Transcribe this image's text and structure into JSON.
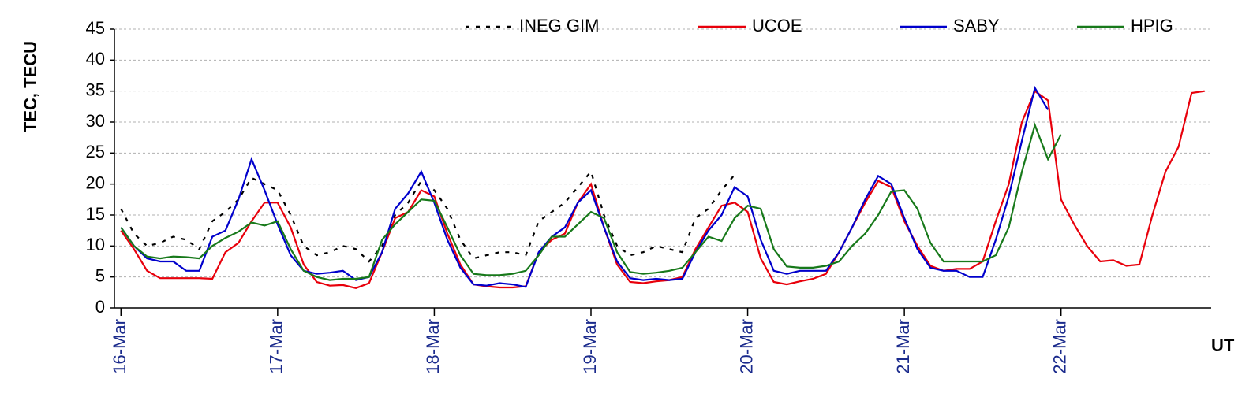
{
  "chart_data": {
    "type": "line",
    "y_label": "TEC, TECU",
    "x_label": "UT",
    "x": [
      0,
      2,
      4,
      6,
      8,
      10,
      12,
      14,
      16,
      18,
      20,
      22,
      24,
      26,
      28,
      30,
      32,
      34,
      36,
      38,
      40,
      42,
      44,
      46,
      48,
      50,
      52,
      54,
      56,
      58,
      60,
      62,
      64,
      66,
      68,
      70,
      72,
      74,
      76,
      78,
      80,
      82,
      84,
      86,
      88,
      90,
      92,
      94,
      96,
      98,
      100,
      102,
      104,
      106,
      108,
      110,
      112,
      114,
      116,
      118,
      120,
      122,
      124,
      126,
      128,
      130,
      132,
      134,
      136,
      138,
      140,
      142,
      144,
      146,
      148,
      150,
      152,
      154,
      156,
      158,
      160,
      162,
      164,
      166
    ],
    "series": [
      {
        "name": "INEG GIM",
        "color": "#000000",
        "dash": "dotted",
        "values": [
          16,
          12,
          10,
          10.5,
          11.5,
          11,
          9.5,
          14,
          15.5,
          17.5,
          21,
          20,
          19,
          15,
          10,
          8.5,
          9,
          10,
          9.5,
          7.5,
          10,
          15,
          17,
          20.5,
          19,
          16,
          11,
          8,
          8.5,
          9,
          9,
          8.5,
          14,
          15.5,
          17,
          19.5,
          22,
          15,
          10,
          8.5,
          9,
          10,
          9.5,
          9,
          14.5,
          16,
          19,
          21.5,
          null,
          null,
          null,
          null,
          null,
          null,
          null,
          null,
          null,
          null,
          null,
          null,
          null,
          null,
          null,
          null,
          null,
          null,
          null,
          null,
          null,
          null,
          null,
          null,
          null,
          null,
          null,
          null,
          null,
          null,
          null,
          null,
          null,
          null,
          null,
          null
        ]
      },
      {
        "name": "UCOE",
        "color": "#e8000b",
        "dash": "solid",
        "values": [
          12.5,
          9.5,
          6,
          4.8,
          4.8,
          4.8,
          4.8,
          4.7,
          9,
          10.5,
          14,
          17,
          17,
          13,
          7,
          4.2,
          3.6,
          3.7,
          3.2,
          4,
          9,
          14.5,
          15.5,
          19,
          18,
          12,
          7,
          3.8,
          3.5,
          3.3,
          3.3,
          3.5,
          9,
          11,
          12,
          17,
          20,
          13,
          7,
          4.2,
          4,
          4.3,
          4.5,
          5,
          9.5,
          13,
          16.5,
          17,
          15.5,
          8,
          4.2,
          3.8,
          4.3,
          4.7,
          5.5,
          9,
          13,
          17,
          20.5,
          19.5,
          14,
          10,
          6.8,
          6,
          6.3,
          6.3,
          7.5,
          14,
          20,
          30,
          35,
          33.5,
          17.5,
          13.5,
          10,
          7.5,
          7.7,
          6.8,
          7,
          15,
          22,
          26,
          34.7,
          35
        ]
      },
      {
        "name": "SABY",
        "color": "#0000cc",
        "dash": "solid",
        "values": [
          13,
          10,
          8,
          7.5,
          7.5,
          6,
          6,
          11.5,
          12.5,
          17.5,
          24,
          19,
          13.5,
          8.5,
          6,
          5.5,
          5.7,
          6,
          4.5,
          5,
          9,
          16,
          18.5,
          22,
          17,
          11,
          6.5,
          3.8,
          3.6,
          4,
          3.8,
          3.4,
          9,
          11.5,
          13,
          17,
          19,
          13,
          7.5,
          4.8,
          4.5,
          4.7,
          4.5,
          4.7,
          9,
          12.5,
          15,
          19.5,
          18,
          11,
          6,
          5.5,
          6,
          6,
          6,
          9,
          13,
          17.5,
          21.3,
          20,
          14.5,
          9.5,
          6.5,
          6,
          6,
          5,
          5,
          11,
          18,
          27,
          35.5,
          32,
          null,
          null,
          null,
          null,
          null,
          null,
          null,
          null,
          null,
          null,
          null,
          null
        ]
      },
      {
        "name": "HPIG",
        "color": "#17791a",
        "dash": "solid",
        "values": [
          13,
          10,
          8.3,
          8,
          8.3,
          8.2,
          8,
          10,
          11.3,
          12.3,
          13.8,
          13.3,
          14,
          9.5,
          6,
          5,
          4.5,
          4.7,
          4.7,
          5,
          11,
          13.5,
          15.5,
          17.5,
          17.3,
          13,
          8.5,
          5.5,
          5.3,
          5.3,
          5.5,
          6,
          8.5,
          11.5,
          11.5,
          13.5,
          15.5,
          14.5,
          9,
          5.8,
          5.5,
          5.7,
          6,
          6.5,
          9,
          11.5,
          10.8,
          14.5,
          16.5,
          16,
          9.5,
          6.7,
          6.5,
          6.5,
          6.8,
          7.5,
          10,
          12,
          15,
          18.8,
          19,
          16,
          10.5,
          7.5,
          7.5,
          7.5,
          7.5,
          8.5,
          13,
          22,
          29.5,
          24,
          28,
          null,
          null,
          null,
          null,
          null,
          null,
          null,
          null,
          null,
          null,
          null
        ]
      }
    ],
    "xlim": [
      -1,
      167
    ],
    "xticks": [
      {
        "value": 0,
        "label": "16-Mar"
      },
      {
        "value": 24,
        "label": "17-Mar"
      },
      {
        "value": 48,
        "label": "18-Mar"
      },
      {
        "value": 72,
        "label": "19-Mar"
      },
      {
        "value": 96,
        "label": "20-Mar"
      },
      {
        "value": 120,
        "label": "21-Mar"
      },
      {
        "value": 144,
        "label": "22-Mar"
      }
    ],
    "ylim": [
      0,
      45
    ],
    "yticks": [
      0,
      5,
      10,
      15,
      20,
      25,
      30,
      35,
      40,
      45
    ],
    "grid": true,
    "legend": "top"
  }
}
